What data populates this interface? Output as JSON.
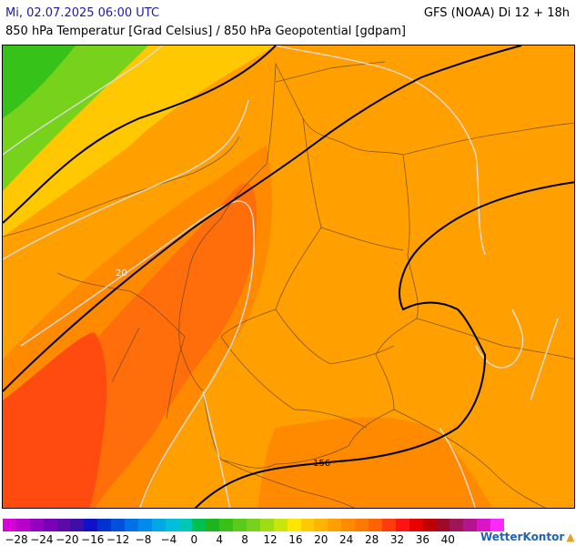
{
  "header": {
    "date_label": "Mi, 02.07.2025 06:00 UTC",
    "model_label": "GFS (NOAA) Di 12 + 18h",
    "subtitle": "850 hPa Temperatur [Grad Celsius] / 850 hPa Geopotential [gdpam]"
  },
  "map": {
    "isotherm_label": "20",
    "geopotential_label": "156",
    "regions": [
      {
        "name": "cold-north-west",
        "color": "#37c21a"
      },
      {
        "name": "cool-belt",
        "color": "#76d21a"
      },
      {
        "name": "mild-belt",
        "color": "#ffc800"
      },
      {
        "name": "warm-main",
        "color": "#ffa000"
      },
      {
        "name": "hot-orange",
        "color": "#ff8a00"
      },
      {
        "name": "hotter",
        "color": "#ff6e0a"
      },
      {
        "name": "hottest-south-west",
        "color": "#ff4b10"
      }
    ]
  },
  "legend": {
    "labels": [
      "−28",
      "−24",
      "−20",
      "−16",
      "−12",
      "−8",
      "−4",
      "0",
      "4",
      "8",
      "12",
      "16",
      "20",
      "24",
      "28",
      "32",
      "36",
      "40"
    ],
    "colors": [
      "#d800d8",
      "#b800c8",
      "#9400c0",
      "#7a00b8",
      "#5c0aa8",
      "#3c10a8",
      "#1010c8",
      "#0032d2",
      "#0050dc",
      "#0070e6",
      "#008ced",
      "#00a8e6",
      "#00bedc",
      "#00c8b4",
      "#00c050",
      "#1eb41e",
      "#37c21a",
      "#5acb1a",
      "#76d21a",
      "#a0dc14",
      "#c8e60a",
      "#ffe600",
      "#ffc800",
      "#ffb400",
      "#ffa000",
      "#ff8c00",
      "#ff7800",
      "#ff6400",
      "#ff3c0a",
      "#ff1414",
      "#e60000",
      "#be0000",
      "#a00a28",
      "#a0145a",
      "#b4148c",
      "#dc14c8",
      "#ff28ff"
    ]
  },
  "brand": {
    "name": "WetterKontor"
  }
}
